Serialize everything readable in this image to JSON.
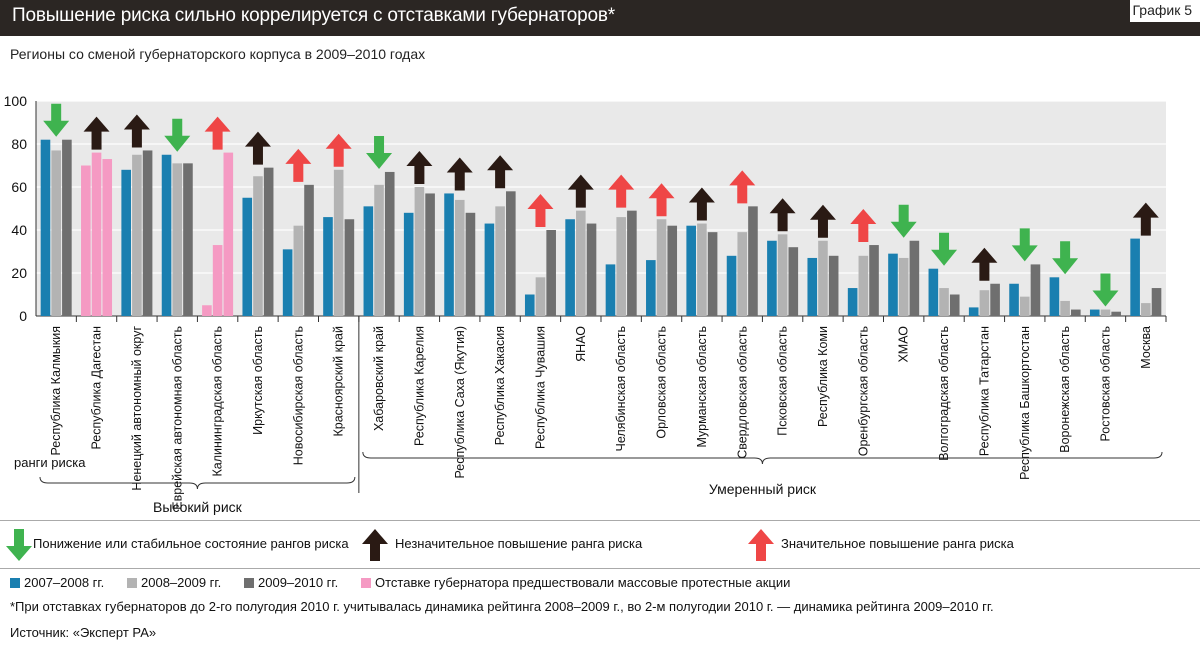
{
  "header": {
    "title": "Повышение риска сильно коррелируется с отставками губернаторов*",
    "badge": "График 5"
  },
  "subtitle": "Регионы со сменой губернаторского корпуса в 2009–2010 годах",
  "colors": {
    "s1": "#1a7fb0",
    "s2": "#b3b3b3",
    "s3": "#6f6f6f",
    "protest": "#f59ac3",
    "green": "#3fb34f",
    "black": "#2a1a14",
    "red": "#ef4646"
  },
  "chart_data": {
    "type": "bar",
    "ylim": [
      0,
      100
    ],
    "yticks": [
      0,
      20,
      40,
      60,
      80,
      100
    ],
    "categories": [
      "Республика Калмыкия",
      "Республика Дагестан",
      "Ненецкий автономный округ",
      "Еврейская автономная область",
      "Калининградская область",
      "Иркутская область",
      "Новосибирская область",
      "Красноярский край",
      "Хабаровский край",
      "Республика Карелия",
      "Республика Саха (Якутия)",
      "Республика Хакасия",
      "Республика Чувашия",
      "ЯНАО",
      "Челябинская область",
      "Орловская область",
      "Мурманская область",
      "Свердловская область",
      "Псковская область",
      "Республика Коми",
      "Оренбургская область",
      "ХМАО",
      "Волгоградская область",
      "Республика Татарстан",
      "Республика Башкортостан",
      "Воронежская область",
      "Ростовская область",
      "Москва"
    ],
    "series": [
      {
        "name": "2007–2008 гг.",
        "values": [
          82,
          70,
          68,
          75,
          5,
          55,
          31,
          46,
          51,
          48,
          57,
          43,
          10,
          45,
          24,
          26,
          42,
          28,
          35,
          27,
          13,
          29,
          22,
          4,
          15,
          18,
          3,
          36
        ]
      },
      {
        "name": "2008–2009 гг.",
        "values": [
          77,
          76,
          75,
          71,
          33,
          65,
          42,
          68,
          61,
          60,
          54,
          51,
          18,
          49,
          46,
          45,
          43,
          39,
          38,
          35,
          28,
          27,
          13,
          12,
          9,
          7,
          3,
          6
        ]
      },
      {
        "name": "2009–2010 гг.",
        "values": [
          82,
          73,
          77,
          71,
          76,
          69,
          61,
          45,
          67,
          57,
          48,
          58,
          40,
          43,
          49,
          42,
          39,
          51,
          32,
          28,
          33,
          35,
          10,
          15,
          24,
          3,
          2,
          13
        ]
      }
    ],
    "protest_regions": [
      1,
      4
    ],
    "arrows": [
      "green",
      "black",
      "black",
      "green",
      "red",
      "black",
      "red",
      "red",
      "green",
      "black",
      "black",
      "black",
      "red",
      "black",
      "red",
      "red",
      "black",
      "red",
      "black",
      "black",
      "red",
      "green",
      "green",
      "black",
      "green",
      "green",
      "green",
      "black"
    ],
    "rank_label": "ранги риска",
    "groups": [
      {
        "label": "Высокий риск",
        "from": 0,
        "to": 7
      },
      {
        "label": "Умеренный риск",
        "from": 8,
        "to": 27
      }
    ]
  },
  "legend": {
    "arrow_green": "Понижение или стабильное состояние рангов риска",
    "arrow_black": "Незначительное повышение ранга риска",
    "arrow_red": "Значительное повышение ранга риска",
    "s1": "2007–2008 гг.",
    "s2": "2008–2009 гг.",
    "s3": "2009–2010 гг.",
    "protest": "Отставке губернатора предшествовали массовые протестные акции"
  },
  "notes": {
    "footnote": "*При отставках губернаторов до 2-го полугодия 2010 г. учитывалась динамика рейтинга 2008–2009 г., во 2-м полугодии 2010 г. — динамика рейтинга 2009–2010 гг.",
    "source": "Источник: «Эксперт РА»"
  }
}
